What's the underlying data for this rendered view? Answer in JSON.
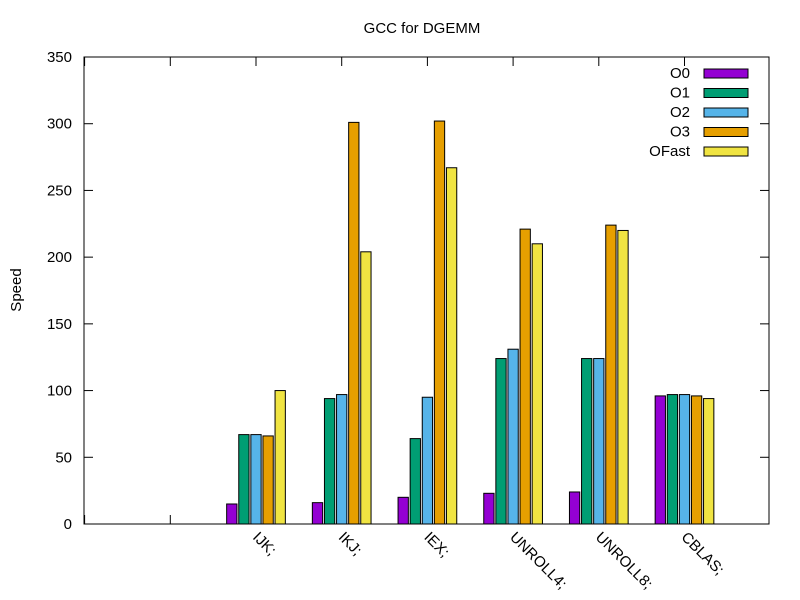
{
  "chart_data": {
    "type": "bar",
    "title": "GCC for DGEMM",
    "xlabel": "",
    "ylabel": "Speed",
    "ylim": [
      0,
      350
    ],
    "yticks": [
      0,
      50,
      100,
      150,
      200,
      250,
      300,
      350
    ],
    "grid": false,
    "legend_position": "top-right",
    "categories": [
      "",
      "",
      "IJK;",
      "IKJ;",
      "IEX;",
      "UNROLL4;",
      "UNROLL8;",
      "CBLAS;"
    ],
    "series": [
      {
        "name": "O0",
        "color": "#9400d3",
        "values": [
          null,
          null,
          15,
          16,
          20,
          23,
          24,
          96
        ]
      },
      {
        "name": "O1",
        "color": "#009e73",
        "values": [
          null,
          null,
          67,
          94,
          64,
          124,
          124,
          97
        ]
      },
      {
        "name": "O2",
        "color": "#56b4e9",
        "values": [
          null,
          null,
          67,
          97,
          95,
          131,
          124,
          97
        ]
      },
      {
        "name": "O3",
        "color": "#e69f00",
        "values": [
          null,
          null,
          66,
          301,
          302,
          221,
          224,
          96
        ]
      },
      {
        "name": "OFast",
        "color": "#f0e442",
        "values": [
          null,
          null,
          100,
          204,
          267,
          210,
          220,
          94
        ]
      }
    ]
  }
}
